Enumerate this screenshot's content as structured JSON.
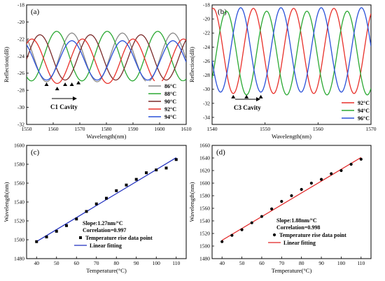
{
  "chart_data": [
    {
      "panel": "(a)",
      "type": "line",
      "xlabel": "Wavelength(nm)",
      "ylabel": "Reflection(dB)",
      "xlim": [
        1550,
        1610
      ],
      "ylim": [
        -32,
        -18
      ],
      "xticks": [
        1550,
        1560,
        1570,
        1580,
        1590,
        1600,
        1610
      ],
      "yticks": [
        -32,
        -30,
        -28,
        -26,
        -24,
        -22,
        -20,
        -18
      ],
      "annotation": "C1 Cavity",
      "legend_position": "bottom-right",
      "dip_markers": [
        [
          1557.5,
          -26.6
        ],
        [
          1561.5,
          -27.1
        ],
        [
          1564.5,
          -26.6
        ],
        [
          1567,
          -26.6
        ],
        [
          1569.5,
          -26.4
        ]
      ],
      "series": [
        {
          "name": "86°C",
          "color": "#888888",
          "period": 19,
          "phase": 1576.5,
          "min": -27.0,
          "max": -21.3
        },
        {
          "name": "88°C",
          "color": "#2aa832",
          "period": 19,
          "phase": 1570.8,
          "min": -26.9,
          "max": -21.1
        },
        {
          "name": "90°C",
          "color": "#7a2a2a",
          "period": 19,
          "phase": 1564.5,
          "min": -26.8,
          "max": -21.5
        },
        {
          "name": "92°C",
          "color": "#e8302a",
          "period": 19,
          "phase": 1561.5,
          "min": -27.2,
          "max": -22.0
        },
        {
          "name": "94°C",
          "color": "#2a50d8",
          "period": 19,
          "phase": 1557.5,
          "min": -26.8,
          "max": -22.2
        }
      ]
    },
    {
      "panel": "(b)",
      "type": "line",
      "xlabel": "Wavelength(nm)",
      "ylabel": "Reflection(dB)",
      "xlim": [
        1540,
        1570
      ],
      "ylim": [
        -35,
        -18
      ],
      "xticks": [
        1540,
        1550,
        1560,
        1570
      ],
      "yticks": [
        -34,
        -32,
        -30,
        -28,
        -26,
        -24,
        -22,
        -20,
        -18
      ],
      "annotation": "C3 Cavity",
      "legend_position": "bottom-right",
      "dip_markers": [
        [
          1544,
          -30.2
        ],
        [
          1546.5,
          -30.2
        ],
        [
          1549.2,
          -30.2
        ]
      ],
      "series": [
        {
          "name": "92°C",
          "color": "#e8302a",
          "period": 7.6,
          "phase": 1544.0,
          "min": -30.6,
          "max": -18.5
        },
        {
          "name": "94°C",
          "color": "#2aa832",
          "period": 7.6,
          "phase": 1546.5,
          "min": -30.8,
          "max": -18.9
        },
        {
          "name": "96°C",
          "color": "#2a50d8",
          "period": 7.6,
          "phase": 1549.2,
          "min": -30.4,
          "max": -18.4
        }
      ]
    },
    {
      "panel": "(c)",
      "type": "scatter",
      "xlabel": "Temperature(°C)",
      "ylabel": "Wavelength(nm)",
      "xlim": [
        35,
        115
      ],
      "ylim": [
        1480,
        1600
      ],
      "xticks": [
        40,
        50,
        60,
        70,
        80,
        90,
        100,
        110
      ],
      "yticks": [
        1480,
        1500,
        1520,
        1540,
        1560,
        1580,
        1600
      ],
      "slope_text": "Slope:1.27nm/°C",
      "corr_text": "Correlation=0.997",
      "points_label": "Temperature rise data point",
      "fit_label": "Linear fitting",
      "fit_color": "#1f2fbf",
      "fit": {
        "slope": 1.27,
        "intercept": 1447.3
      },
      "x": [
        40,
        45,
        50,
        55,
        60,
        65,
        70,
        75,
        80,
        85,
        90,
        95,
        100,
        105,
        110
      ],
      "y": [
        1498,
        1503,
        1509,
        1515,
        1522,
        1530,
        1538,
        1544,
        1552,
        1558,
        1564,
        1571,
        1574,
        1576,
        1585
      ]
    },
    {
      "panel": "(d)",
      "type": "scatter",
      "xlabel": "Temperature(°C)",
      "ylabel": "Wavelength(nm)",
      "xlim": [
        35,
        115
      ],
      "ylim": [
        1480,
        1660
      ],
      "xticks": [
        40,
        50,
        60,
        70,
        80,
        90,
        100,
        110
      ],
      "yticks": [
        1480,
        1500,
        1520,
        1540,
        1560,
        1580,
        1600,
        1620,
        1640,
        1660
      ],
      "slope_text": "Slope:1.88nm/°C",
      "corr_text": "Correlation=0.998",
      "points_label": "Temperature rise data point",
      "fit_label": "Linear fitting",
      "fit_color": "#e02020",
      "fit": {
        "slope": 1.88,
        "intercept": 1434.0
      },
      "x": [
        40,
        45,
        50,
        55,
        60,
        65,
        70,
        75,
        80,
        85,
        90,
        95,
        100,
        105,
        110
      ],
      "y": [
        1507,
        1517,
        1526,
        1537,
        1547,
        1559,
        1571,
        1580,
        1590,
        1600,
        1606,
        1615,
        1620,
        1630,
        1638
      ]
    }
  ]
}
